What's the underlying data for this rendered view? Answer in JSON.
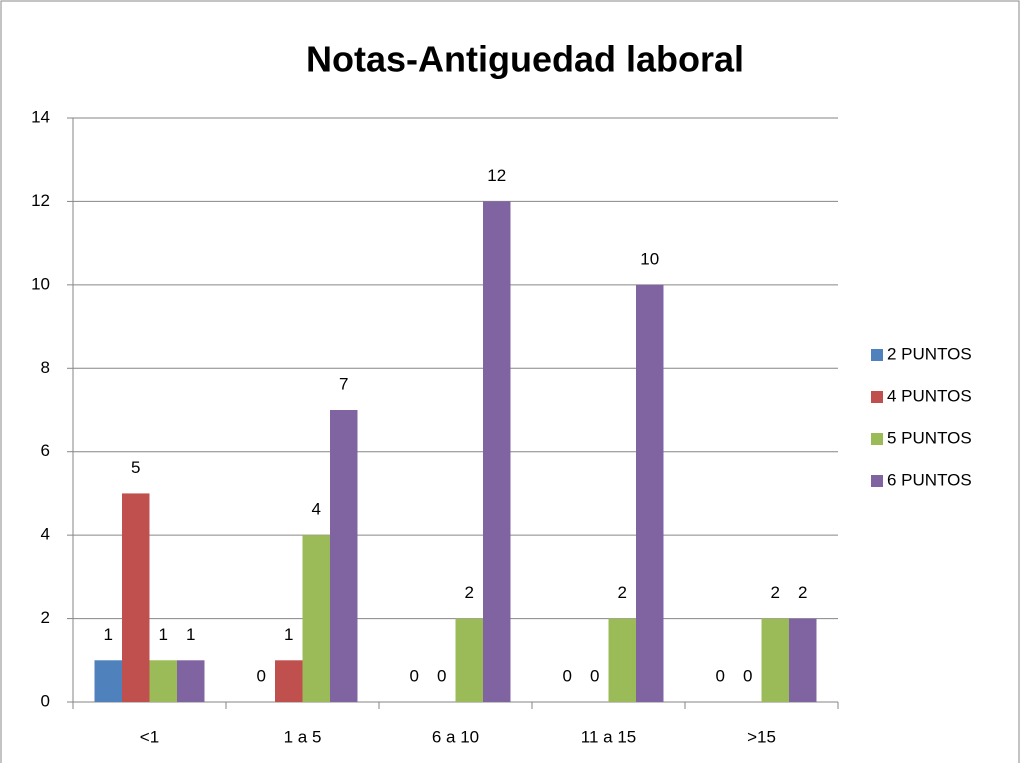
{
  "chart_data": {
    "type": "bar",
    "title": "Notas-Antiguedad laboral",
    "categories": [
      "<1",
      "1 a 5",
      "6 a 10",
      "11 a 15",
      ">15"
    ],
    "series": [
      {
        "name": "2 PUNTOS",
        "color": "#4f81bd",
        "values": [
          1,
          0,
          0,
          0,
          0
        ]
      },
      {
        "name": "4 PUNTOS",
        "color": "#c0504d",
        "values": [
          5,
          1,
          0,
          0,
          0
        ]
      },
      {
        "name": "5 PUNTOS",
        "color": "#9bbb59",
        "values": [
          1,
          4,
          2,
          2,
          2
        ]
      },
      {
        "name": "6 PUNTOS",
        "color": "#8064a2",
        "values": [
          1,
          7,
          12,
          10,
          2
        ]
      }
    ],
    "ylim": [
      0,
      14
    ],
    "yticks": [
      0,
      2,
      4,
      6,
      8,
      10,
      12,
      14
    ],
    "grid": true,
    "legend": "right"
  }
}
